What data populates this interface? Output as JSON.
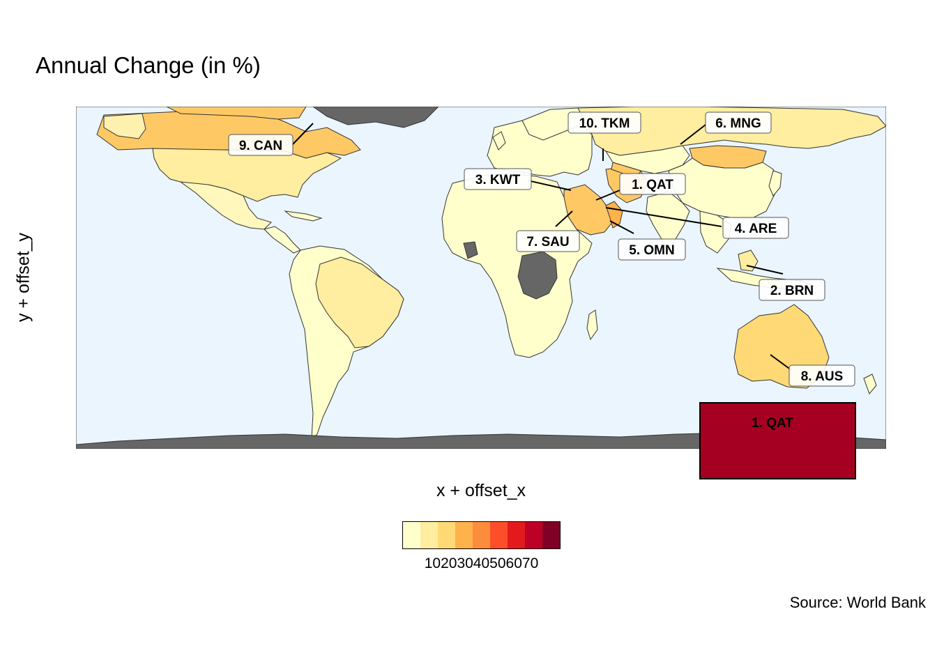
{
  "title": "Annual Change (in %)",
  "axes": {
    "x_label": "x + offset_x",
    "y_label": "y + offset_y"
  },
  "caption": "Source: World Bank",
  "legend": {
    "ticks": "10203040506070",
    "colors": [
      "#ffffcc",
      "#ffeda0",
      "#fed976",
      "#feb24c",
      "#fd8d3c",
      "#fc4e2a",
      "#e31a1c",
      "#bd0026",
      "#800026"
    ]
  },
  "colors": {
    "ocean": "#eaf5fd",
    "no_data": "#666666",
    "border": "#333333",
    "highlight_box": "#a50021"
  },
  "labels": [
    {
      "rank_label": "1. QAT"
    },
    {
      "rank_label": "2. BRN"
    },
    {
      "rank_label": "3. KWT"
    },
    {
      "rank_label": "4. ARE"
    },
    {
      "rank_label": "5. OMN"
    },
    {
      "rank_label": "6. MNG"
    },
    {
      "rank_label": "7. SAU"
    },
    {
      "rank_label": "8. AUS"
    },
    {
      "rank_label": "9. CAN"
    },
    {
      "rank_label": "10. TKM"
    }
  ],
  "highlight": {
    "label": "1. QAT"
  }
}
